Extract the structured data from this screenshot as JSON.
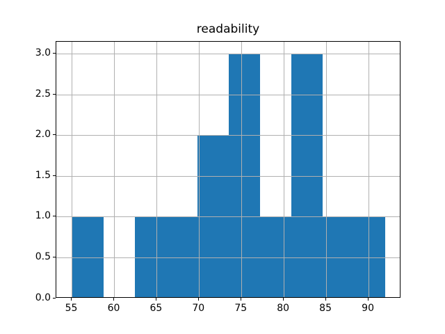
{
  "figure": {
    "background": "#ffffff"
  },
  "chart_data": {
    "type": "bar",
    "subtype": "histogram",
    "title": "readability",
    "xlabel": "",
    "ylabel": "",
    "bin_edges": [
      55.0,
      58.7,
      62.4,
      66.1,
      69.8,
      73.5,
      77.2,
      80.9,
      84.6,
      88.3,
      92.0
    ],
    "counts": [
      1,
      0,
      1,
      1,
      2,
      3,
      1,
      3,
      1,
      1
    ],
    "xlim": [
      53.15,
      93.85
    ],
    "ylim": [
      0,
      3.15
    ],
    "xticks": [
      55,
      60,
      65,
      70,
      75,
      80,
      85,
      90
    ],
    "xtick_labels": [
      "55",
      "60",
      "65",
      "70",
      "75",
      "80",
      "85",
      "90"
    ],
    "yticks": [
      0,
      0.5,
      1,
      1.5,
      2,
      2.5,
      3
    ],
    "ytick_labels": [
      "0.0",
      "0.5",
      "1.0",
      "1.5",
      "2.0",
      "2.5",
      "3.0"
    ],
    "grid": true,
    "grid_above_bars": true,
    "legend_position": "none",
    "colors": {
      "bar": "#1f77b4",
      "grid": "#b0b0b0",
      "spine": "#000000",
      "text": "#000000",
      "background": "#ffffff"
    }
  }
}
